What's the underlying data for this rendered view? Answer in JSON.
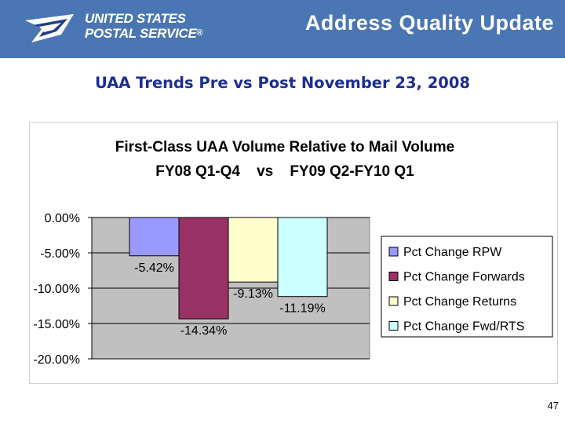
{
  "header": {
    "logo_line1": "UNITED STATES",
    "logo_line2": "POSTAL SERVICE",
    "logo_reg": "®",
    "logo_icon": "eagle-icon",
    "title": "Address Quality Update"
  },
  "subtitle": "UAA Trends Pre vs Post November 23, 2008",
  "page_number": "47",
  "colors": {
    "header_bg": "#4a76b3",
    "subtitle": "#1d2f93",
    "plot_bg": "#c0c0c0"
  },
  "chart_data": {
    "type": "bar",
    "title_line1": "First-Class UAA Volume Relative to Mail Volume",
    "title_line2": "FY08 Q1-Q4    vs    FY09 Q2-FY10 Q1",
    "categories": [
      ""
    ],
    "series": [
      {
        "name": "Pct Change RPW",
        "values": [
          -5.42
        ],
        "label": "-5.42%",
        "color": "#9999ff"
      },
      {
        "name": "Pct Change Forwards",
        "values": [
          -14.34
        ],
        "label": "-14.34%",
        "color": "#993366"
      },
      {
        "name": "Pct Change Returns",
        "values": [
          -9.13
        ],
        "label": "-9.13%",
        "color": "#ffffcc"
      },
      {
        "name": "Pct Change Fwd/RTS",
        "values": [
          -11.19
        ],
        "label": "-11.19%",
        "color": "#ccffff"
      }
    ],
    "y_ticks": [
      0,
      -5,
      -10,
      -15,
      -20
    ],
    "y_tick_labels": [
      "0.00%",
      "-5.00%",
      "-10.00%",
      "-15.00%",
      "-20.00%"
    ],
    "ylim": [
      -20,
      0
    ],
    "xlabel": "",
    "ylabel": "",
    "grid": true,
    "legend": "right"
  }
}
